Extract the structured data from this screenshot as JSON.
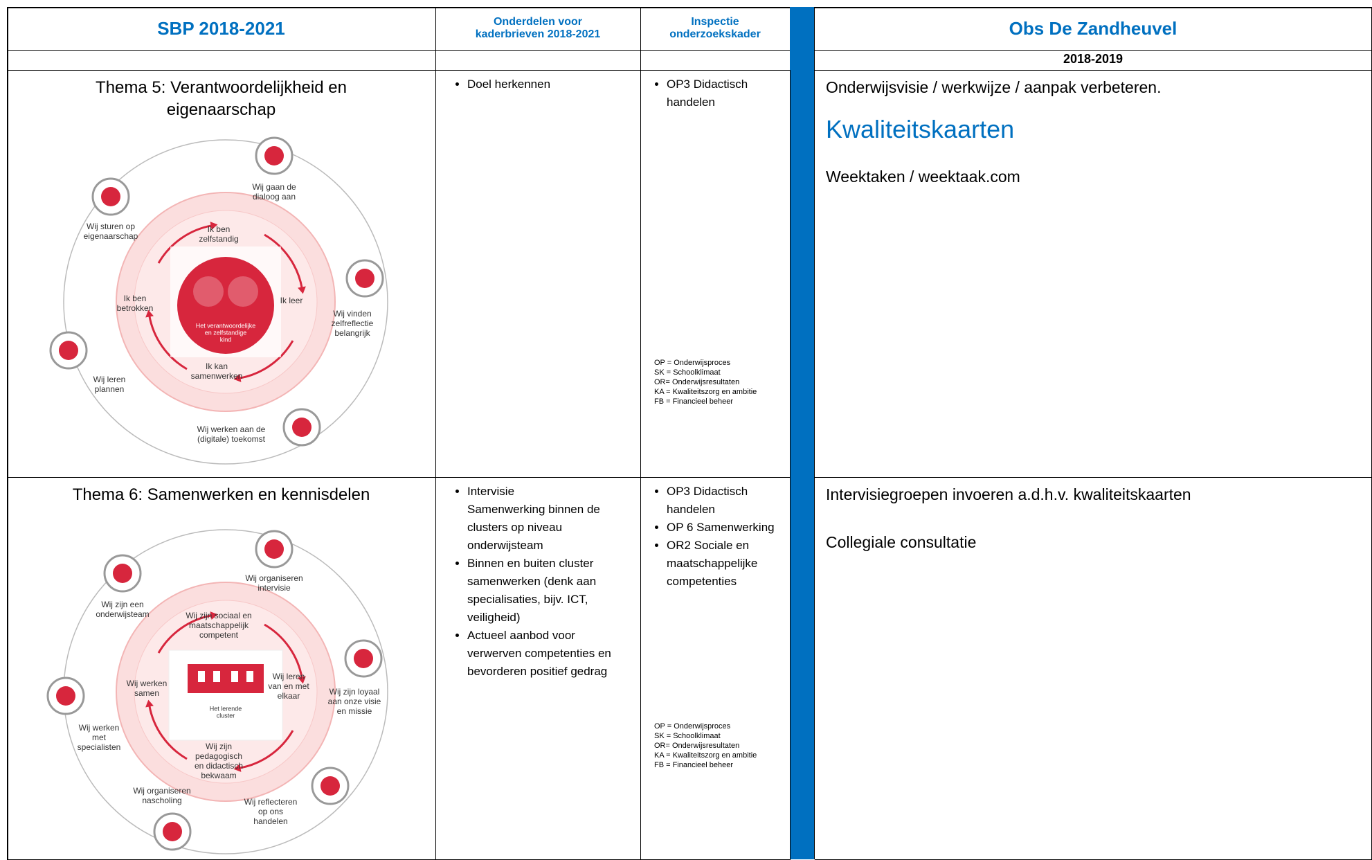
{
  "header": {
    "col1": "SBP 2018-2021",
    "col2": "Onderdelen voor kaderbrieven 2018-2021",
    "col3": "Inspectie onderzoekskader",
    "col5": "Obs De Zandheuvel"
  },
  "year": "2018-2019",
  "rows": [
    {
      "theme": "Thema 5: Verantwoordelijkheid en eigenaarschap",
      "diagram": {
        "outer": [
          [
            "Wij gaan de",
            "dialoog aan"
          ],
          [
            "Wij sturen op",
            "eigenaarschap"
          ],
          [
            "Wij vinden",
            "zelfreflectie",
            "belangrijk"
          ],
          [
            "Wij leren",
            "plannen"
          ],
          [
            "Wij werken aan de",
            "(digitale) toekomst"
          ]
        ],
        "inner": [
          [
            "Ik ben",
            "zelfstandig"
          ],
          [
            "Ik leer"
          ],
          [
            "Ik ben",
            "betrokken"
          ],
          [
            "Ik kan",
            "samenwerken"
          ]
        ],
        "center": [
          "Het verantwoordelijke",
          "en zelfstandige",
          "kind"
        ]
      },
      "col2": [
        [
          "Doel herkennen"
        ]
      ],
      "col3": [
        "OP3 Didactisch handelen"
      ],
      "legend": [
        "OP = Onderwijsproces",
        "SK = Schoolklimaat",
        "OR= Onderwijsresultaten",
        "KA = Kwaliteitszorg en ambitie",
        "FB = Financieel beheer"
      ],
      "col5": [
        "Onderwijsvisie / werkwijze / aanpak verbeteren.",
        "Kwaliteitskaarten",
        "Weektaken / weektaak.com"
      ]
    },
    {
      "theme": "Thema 6: Samenwerken en kennisdelen",
      "diagram": {
        "outer": [
          [
            "Wij organiseren",
            "intervisie"
          ],
          [
            "Wij zijn een",
            "onderwijsteam"
          ],
          [
            "Wij zijn loyaal",
            "aan onze visie",
            "en missie"
          ],
          [
            "Wij werken",
            "met",
            "specialisten"
          ],
          [
            "Wij organiseren",
            "nascholing"
          ],
          [
            "Wij reflecteren",
            "op ons",
            "handelen"
          ]
        ],
        "inner": [
          [
            "Wij zijn sociaal en",
            "maatschappelijk",
            "competent"
          ],
          [
            "Wij leren",
            "van en met",
            "elkaar"
          ],
          [
            "Wij werken",
            "samen"
          ],
          [
            "Wij zijn",
            "pedagogisch",
            "en didactisch",
            "bekwaam"
          ]
        ],
        "center": [
          "Het lerende",
          "cluster"
        ]
      },
      "col2": [
        [
          "Intervisie",
          "Samenwerking binnen de clusters op niveau onderwijsteam"
        ],
        [
          "Binnen en buiten cluster samenwerken (denk aan specialisaties, bijv. ICT, veiligheid)"
        ],
        [
          "Actueel aanbod voor verwerven competenties en bevorderen positief gedrag"
        ]
      ],
      "col3": [
        "OP3 Didactisch handelen",
        "OP 6 Samenwerking",
        "OR2 Sociale en maatschappelijke competenties"
      ],
      "legend": [
        "OP = Onderwijsproces",
        "SK = Schoolklimaat",
        "OR= Onderwijsresultaten",
        "KA = Kwaliteitszorg en ambitie",
        "FB = Financieel beheer"
      ],
      "col5": [
        "Intervisiegroepen invoeren a.d.h.v. kwaliteitskaarten",
        "Collegiale consultatie"
      ]
    }
  ]
}
